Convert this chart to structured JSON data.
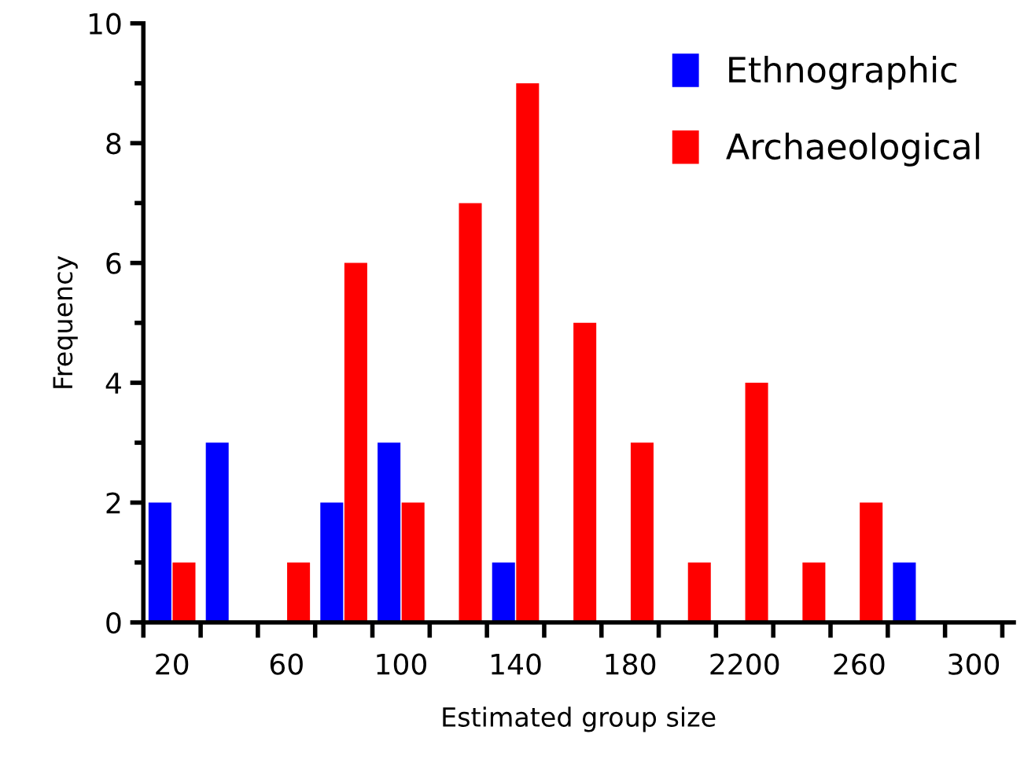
{
  "chart_data": {
    "type": "bar",
    "xlabel": "Estimated group size",
    "ylabel": "Frequency",
    "categories": [
      "20",
      null,
      "60",
      null,
      "100",
      null,
      "140",
      null,
      "180",
      null,
      "2200",
      null,
      "260",
      null,
      "300"
    ],
    "series": [
      {
        "name": "Ethnographic",
        "color": "#0000ff",
        "values": [
          2,
          3,
          0,
          2,
          3,
          0,
          1,
          0,
          0,
          0,
          0,
          0,
          0,
          1,
          0
        ]
      },
      {
        "name": "Archaeological",
        "color": "#ff0000",
        "values": [
          1,
          0,
          1,
          6,
          2,
          7,
          9,
          5,
          3,
          1,
          4,
          1,
          2,
          0,
          0
        ]
      }
    ],
    "ylim": [
      0,
      10
    ],
    "yticks": [
      0,
      2,
      4,
      6,
      8,
      10
    ],
    "grid": false,
    "legend": "top right"
  }
}
